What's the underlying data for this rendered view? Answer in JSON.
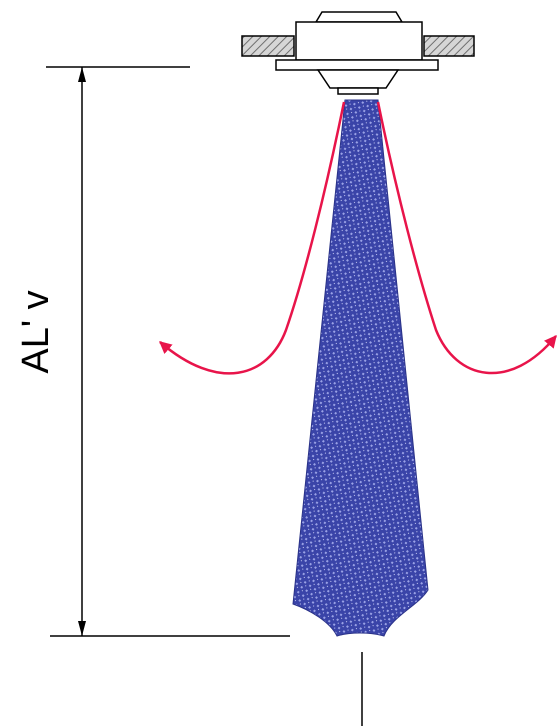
{
  "diagram": {
    "dimension_label": "AL' v",
    "colors": {
      "jet_fill": "#3a44a8",
      "jet_pattern": "#9aa2e6",
      "flow_arrow": "#e8144a",
      "line": "#000000",
      "ceiling_hatch": "#8c8c8c"
    },
    "icons": {
      "diffuser": "ceiling-nozzle-icon",
      "flow_arrow": "arrow-icon"
    }
  }
}
